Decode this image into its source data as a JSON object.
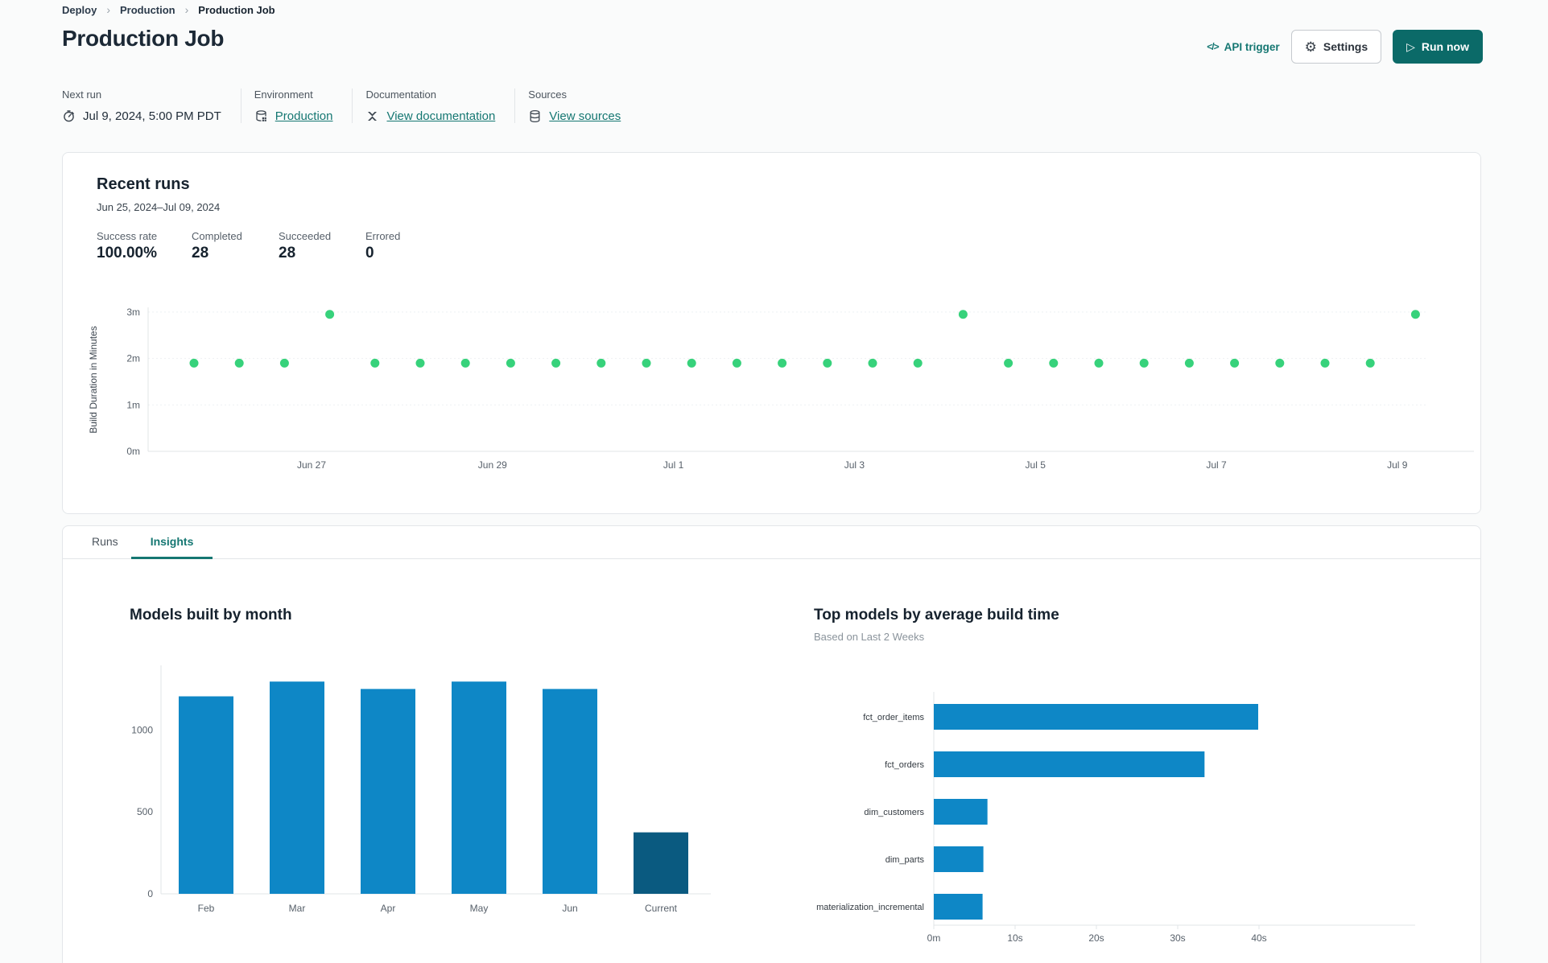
{
  "breadcrumb": {
    "items": [
      {
        "label": "Deploy"
      },
      {
        "label": "Production"
      },
      {
        "label": "Production Job"
      }
    ],
    "separator": "›"
  },
  "header": {
    "title": "Production Job",
    "api_trigger_label": "API trigger",
    "settings_label": "Settings",
    "run_now_label": "Run now"
  },
  "icons": {
    "api_trigger": "</>",
    "settings": "⚙",
    "run_now": "▷",
    "breadcrumb_separator": "›"
  },
  "info_bar": {
    "next_run": {
      "label": "Next run",
      "value": "Jul 9, 2024, 5:00 PM PDT"
    },
    "environment": {
      "label": "Environment",
      "link": "Production"
    },
    "documentation": {
      "label": "Documentation",
      "link": "View documentation"
    },
    "sources": {
      "label": "Sources",
      "link": "View sources"
    }
  },
  "recent_runs": {
    "title": "Recent runs",
    "date_range": "Jun 25, 2024–Jul 09, 2024",
    "stats": [
      {
        "label": "Success rate",
        "value": "100.00%"
      },
      {
        "label": "Completed",
        "value": "28"
      },
      {
        "label": "Succeeded",
        "value": "28"
      },
      {
        "label": "Errored",
        "value": "0"
      }
    ]
  },
  "tabs": [
    {
      "label": "Runs",
      "active": false
    },
    {
      "label": "Insights",
      "active": true
    }
  ],
  "colors": {
    "accent_teal": "#157772",
    "run_now_bg": "#0b6a68",
    "bar_blue": "#0e87c6",
    "bar_dark_current": "#0a5a80",
    "dot_green": "#37d27b",
    "axis_gray": "#e1e4e7",
    "tick_text": "#57606a"
  },
  "chart_data": [
    {
      "name": "recent-runs-build-duration",
      "type": "scatter",
      "ylabel": "Build Duration in Minutes",
      "yticks": [
        {
          "v": 0,
          "label": "0m"
        },
        {
          "v": 1,
          "label": "1m"
        },
        {
          "v": 2,
          "label": "2m"
        },
        {
          "v": 3,
          "label": "3m"
        }
      ],
      "ylim": [
        0,
        3.1
      ],
      "xticks": [
        "Jun 27",
        "Jun 29",
        "Jul 1",
        "Jul 3",
        "Jul 5",
        "Jul 7",
        "Jul 9"
      ],
      "points_build_minutes": [
        1.9,
        1.9,
        1.9,
        2.95,
        1.9,
        1.9,
        1.9,
        1.9,
        1.9,
        1.9,
        1.9,
        1.9,
        1.9,
        1.9,
        1.9,
        1.9,
        1.9,
        2.95,
        1.9,
        1.9,
        1.9,
        1.9,
        1.9,
        1.9,
        1.9,
        1.9,
        1.9,
        2.95
      ],
      "point_color": "#37d27b",
      "grid": true,
      "legend": "none"
    },
    {
      "name": "models-built-by-month",
      "type": "bar",
      "title": "Models built by month",
      "categories": [
        "Feb",
        "Mar",
        "Apr",
        "May",
        "Jun",
        "Current"
      ],
      "values": [
        1205,
        1295,
        1250,
        1295,
        1250,
        375
      ],
      "yticks": [
        0,
        500,
        1000
      ],
      "ylim": [
        0,
        1350
      ],
      "bar_colors": [
        "#0e87c6",
        "#0e87c6",
        "#0e87c6",
        "#0e87c6",
        "#0e87c6",
        "#0a5a80"
      ],
      "grid": false,
      "legend": "none"
    },
    {
      "name": "top-models-by-average-build-time",
      "type": "horizontal-bar",
      "title": "Top models by average build time",
      "subtitle": "Based on Last 2 Weeks",
      "categories": [
        "fct_order_items",
        "fct_orders",
        "dim_customers",
        "dim_parts",
        "materialization_incremental"
      ],
      "values_seconds": [
        39.9,
        33.3,
        6.6,
        6.1,
        6.0
      ],
      "xticks": [
        {
          "v": 0,
          "label": "0m"
        },
        {
          "v": 10,
          "label": "10s"
        },
        {
          "v": 20,
          "label": "20s"
        },
        {
          "v": 30,
          "label": "30s"
        },
        {
          "v": 40,
          "label": "40s"
        }
      ],
      "xlim": [
        0,
        44
      ],
      "bar_color": "#0e87c6",
      "grid": false,
      "legend": "none"
    }
  ]
}
